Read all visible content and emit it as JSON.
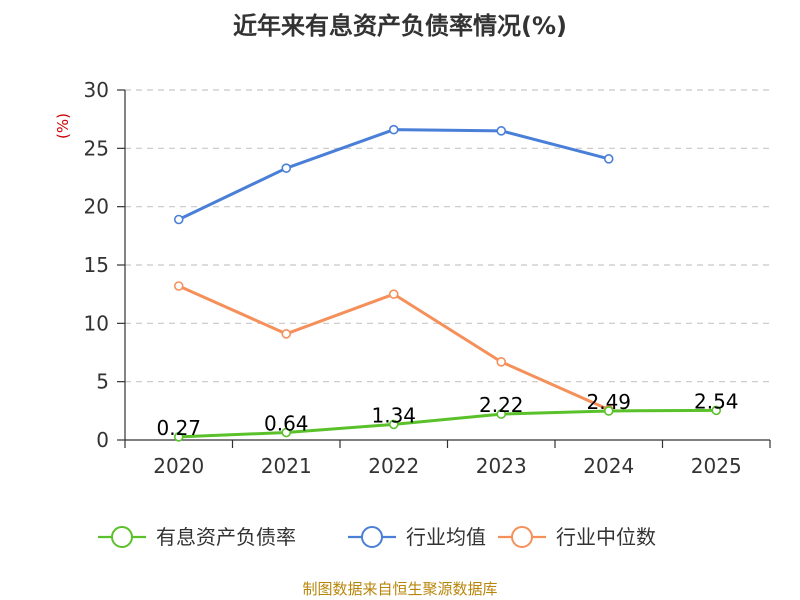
{
  "chart_data": {
    "type": "line",
    "title": "近年来有息资产负债率情况(%)",
    "ylabel": "(%)",
    "categories": [
      "2020",
      "2021",
      "2022",
      "2023",
      "2024",
      "2025"
    ],
    "ylim": [
      0,
      30
    ],
    "yticks": [
      "0",
      "5",
      "10",
      "15",
      "20",
      "25",
      "30"
    ],
    "grid": true,
    "legend_position": "bottom",
    "series": [
      {
        "name": "有息资产负债率",
        "color": "#5ac12a",
        "values": [
          0.27,
          0.64,
          1.34,
          2.22,
          2.49,
          2.54
        ],
        "labels": [
          "0.27",
          "0.64",
          "1.34",
          "2.22",
          "2.49",
          "2.54"
        ]
      },
      {
        "name": "行业均值",
        "color": "#4a7fd8",
        "values": [
          18.9,
          23.3,
          26.6,
          26.5,
          24.1,
          null
        ]
      },
      {
        "name": "行业中位数",
        "color": "#f5905a",
        "values": [
          13.2,
          9.1,
          12.5,
          6.7,
          2.6,
          null
        ]
      }
    ]
  },
  "source_note": "制图数据来自恒生聚源数据库"
}
